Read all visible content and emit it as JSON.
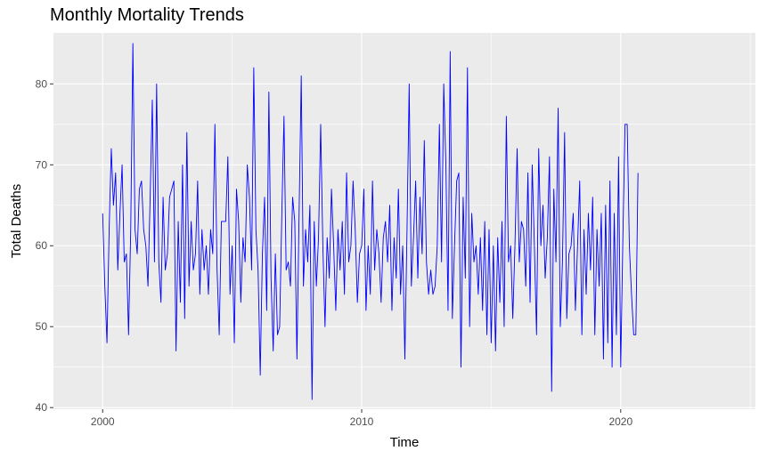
{
  "chart_data": {
    "type": "line",
    "title": "Monthly Mortality Trends",
    "xlabel": "Time",
    "ylabel": "Total Deaths",
    "xlim": [
      1998.1,
      2025.2
    ],
    "ylim": [
      39.8,
      86.3
    ],
    "x_ticks": [
      2000,
      2010,
      2020
    ],
    "y_ticks": [
      40,
      50,
      60,
      70,
      80
    ],
    "grid": true,
    "line_color": "#0000ff",
    "panel_background": "#ebebeb",
    "grid_color": "#ffffff",
    "series": [
      {
        "start_year": 2000,
        "frequency": 12,
        "values": [
          64,
          55,
          48,
          62,
          72,
          65,
          69,
          57,
          64,
          70,
          58,
          59,
          49,
          62,
          85,
          62,
          59,
          67,
          68,
          62,
          60,
          55,
          66,
          78,
          58,
          80,
          58,
          53,
          66,
          57,
          59,
          66,
          67,
          68,
          47,
          63,
          53,
          70,
          51,
          74,
          55,
          63,
          57,
          59,
          68,
          54,
          62,
          57,
          60,
          54,
          62,
          59,
          75,
          57,
          49,
          63,
          63,
          63,
          71,
          54,
          60,
          48,
          67,
          63,
          53,
          61,
          58,
          70,
          66,
          57,
          82,
          62,
          57,
          44,
          59,
          66,
          52,
          79,
          56,
          47,
          59,
          49,
          50,
          64,
          76,
          57,
          58,
          55,
          66,
          63,
          46,
          64,
          81,
          55,
          62,
          58,
          65,
          41,
          63,
          55,
          61,
          75,
          60,
          50,
          61,
          56,
          67,
          60,
          52,
          62,
          57,
          63,
          54,
          69,
          58,
          60,
          68,
          62,
          53,
          59,
          60,
          67,
          52,
          60,
          54,
          68,
          57,
          62,
          59,
          53,
          61,
          63,
          58,
          65,
          52,
          61,
          56,
          67,
          54,
          60,
          46,
          62,
          80,
          55,
          61,
          68,
          56,
          66,
          59,
          73,
          58,
          54,
          57,
          54,
          55,
          60,
          75,
          58,
          80,
          70,
          52,
          84,
          51,
          60,
          68,
          69,
          45,
          66,
          56,
          82,
          50,
          64,
          58,
          60,
          54,
          61,
          52,
          63,
          49,
          62,
          48,
          60,
          47,
          61,
          53,
          63,
          50,
          76,
          58,
          60,
          51,
          60,
          72,
          58,
          63,
          62,
          55,
          69,
          53,
          70,
          60,
          49,
          72,
          60,
          65,
          56,
          61,
          71,
          42,
          67,
          58,
          77,
          50,
          58,
          74,
          51,
          59,
          60,
          64,
          52,
          60,
          68,
          49,
          62,
          54,
          64,
          57,
          66,
          49,
          62,
          55,
          64,
          46,
          65,
          48,
          68,
          45,
          64,
          49,
          71,
          45,
          61,
          75,
          75,
          60,
          54,
          49,
          49,
          69
        ]
      }
    ]
  }
}
